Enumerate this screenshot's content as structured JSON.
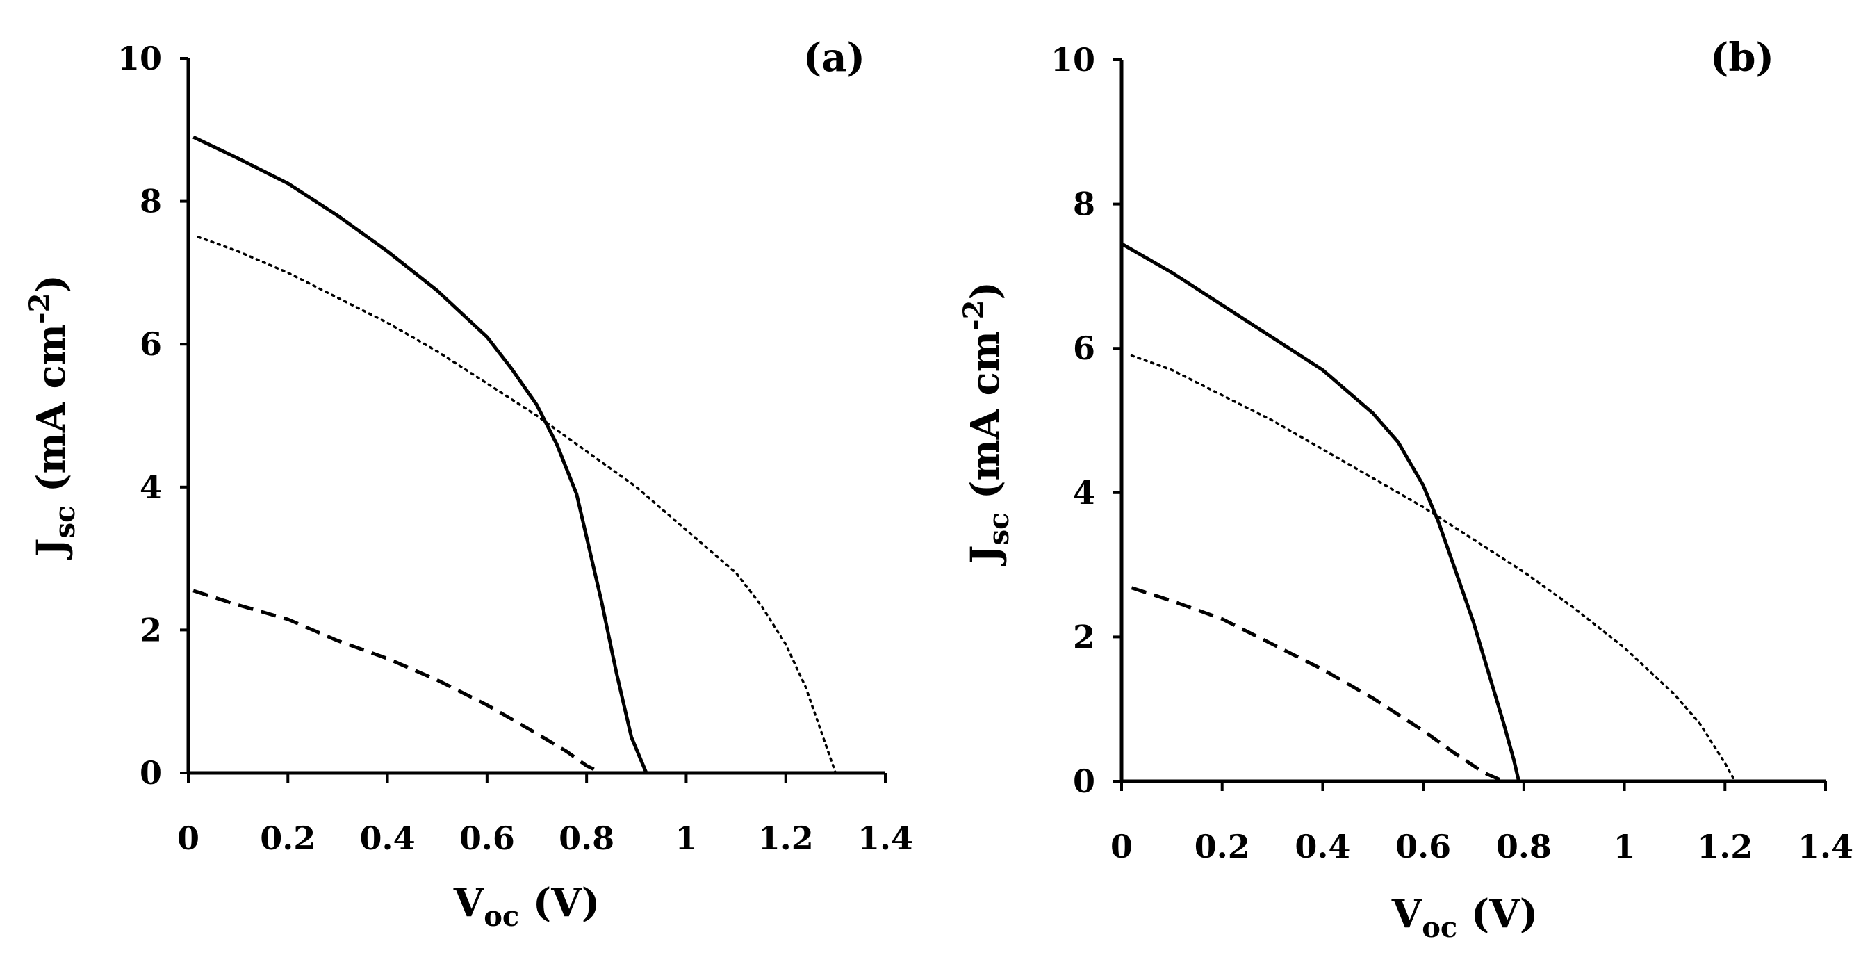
{
  "chart_data": [
    {
      "type": "line",
      "panel_label": "(a)",
      "xlabel": {
        "main": "V",
        "sub": "oc",
        "unit": " (V)"
      },
      "ylabel": {
        "main": "J",
        "sub": "sc",
        "unit_pre": " (mA cm",
        "unit_sup": "-2",
        "unit_post": ")"
      },
      "xlim": [
        0,
        1.4
      ],
      "ylim": [
        0,
        10
      ],
      "xticks": [
        {
          "v": 0,
          "label": "0"
        },
        {
          "v": 0.2,
          "label": "0.2"
        },
        {
          "v": 0.4,
          "label": "0.4"
        },
        {
          "v": 0.6,
          "label": "0.6"
        },
        {
          "v": 0.8,
          "label": "0.8"
        },
        {
          "v": 1,
          "label": "1"
        },
        {
          "v": 1.2,
          "label": "1.2"
        },
        {
          "v": 1.4,
          "label": "1.4"
        }
      ],
      "yticks": [
        {
          "v": 0,
          "label": "0"
        },
        {
          "v": 2,
          "label": "2"
        },
        {
          "v": 4,
          "label": "4"
        },
        {
          "v": 6,
          "label": "6"
        },
        {
          "v": 8,
          "label": "8"
        },
        {
          "v": 10,
          "label": "10"
        }
      ],
      "series": [
        {
          "name": "solid",
          "style": "solid",
          "color": "#000000",
          "x": [
            0.01,
            0.1,
            0.2,
            0.3,
            0.4,
            0.5,
            0.6,
            0.65,
            0.7,
            0.74,
            0.78,
            0.8,
            0.83,
            0.86,
            0.89,
            0.92
          ],
          "y": [
            8.9,
            8.6,
            8.25,
            7.8,
            7.3,
            6.75,
            6.1,
            5.65,
            5.15,
            4.6,
            3.9,
            3.3,
            2.4,
            1.4,
            0.5,
            0
          ]
        },
        {
          "name": "dotted",
          "style": "dotted",
          "color": "#000000",
          "x": [
            0.02,
            0.1,
            0.2,
            0.3,
            0.4,
            0.5,
            0.6,
            0.7,
            0.8,
            0.9,
            1.0,
            1.1,
            1.15,
            1.2,
            1.24,
            1.27,
            1.3
          ],
          "y": [
            7.5,
            7.3,
            7.0,
            6.65,
            6.3,
            5.9,
            5.45,
            5.0,
            4.5,
            4.0,
            3.4,
            2.8,
            2.35,
            1.8,
            1.2,
            0.6,
            0
          ]
        },
        {
          "name": "dashed",
          "style": "dashed",
          "color": "#000000",
          "x": [
            0.01,
            0.1,
            0.2,
            0.3,
            0.4,
            0.5,
            0.6,
            0.7,
            0.76,
            0.8,
            0.83
          ],
          "y": [
            2.55,
            2.35,
            2.15,
            1.85,
            1.6,
            1.3,
            0.95,
            0.55,
            0.3,
            0.1,
            0
          ]
        }
      ]
    },
    {
      "type": "line",
      "panel_label": "(b)",
      "xlabel": {
        "main": "V",
        "sub": "oc",
        "unit": " (V)"
      },
      "ylabel": {
        "main": "J",
        "sub": "sc",
        "unit_pre": " (mA cm",
        "unit_sup": "-2",
        "unit_post": ")"
      },
      "xlim": [
        0,
        1.4
      ],
      "ylim": [
        0,
        10
      ],
      "xticks": [
        {
          "v": 0,
          "label": "0"
        },
        {
          "v": 0.2,
          "label": "0.2"
        },
        {
          "v": 0.4,
          "label": "0.4"
        },
        {
          "v": 0.6,
          "label": "0.6"
        },
        {
          "v": 0.8,
          "label": "0.8"
        },
        {
          "v": 1,
          "label": "1"
        },
        {
          "v": 1.2,
          "label": "1.2"
        },
        {
          "v": 1.4,
          "label": "1.4"
        }
      ],
      "yticks": [
        {
          "v": 0,
          "label": "0"
        },
        {
          "v": 2,
          "label": "2"
        },
        {
          "v": 4,
          "label": "4"
        },
        {
          "v": 6,
          "label": "6"
        },
        {
          "v": 8,
          "label": "8"
        },
        {
          "v": 10,
          "label": "10"
        }
      ],
      "series": [
        {
          "name": "solid",
          "style": "solid",
          "color": "#000000",
          "x": [
            0.0,
            0.1,
            0.2,
            0.3,
            0.4,
            0.5,
            0.55,
            0.6,
            0.63,
            0.66,
            0.7,
            0.73,
            0.76,
            0.78,
            0.79
          ],
          "y": [
            7.45,
            7.05,
            6.6,
            6.15,
            5.7,
            5.1,
            4.7,
            4.1,
            3.6,
            3.0,
            2.2,
            1.5,
            0.8,
            0.3,
            0
          ]
        },
        {
          "name": "dotted",
          "style": "dotted",
          "color": "#000000",
          "x": [
            0.02,
            0.1,
            0.2,
            0.3,
            0.4,
            0.5,
            0.6,
            0.7,
            0.8,
            0.9,
            1.0,
            1.1,
            1.15,
            1.2,
            1.22
          ],
          "y": [
            5.9,
            5.7,
            5.35,
            5.0,
            4.6,
            4.2,
            3.8,
            3.35,
            2.9,
            2.4,
            1.85,
            1.2,
            0.8,
            0.25,
            0
          ]
        },
        {
          "name": "dashed",
          "style": "dashed",
          "color": "#000000",
          "x": [
            0.02,
            0.1,
            0.2,
            0.3,
            0.4,
            0.5,
            0.6,
            0.66,
            0.72,
            0.76
          ],
          "y": [
            2.68,
            2.5,
            2.25,
            1.9,
            1.55,
            1.15,
            0.7,
            0.4,
            0.12,
            0
          ]
        }
      ]
    }
  ]
}
